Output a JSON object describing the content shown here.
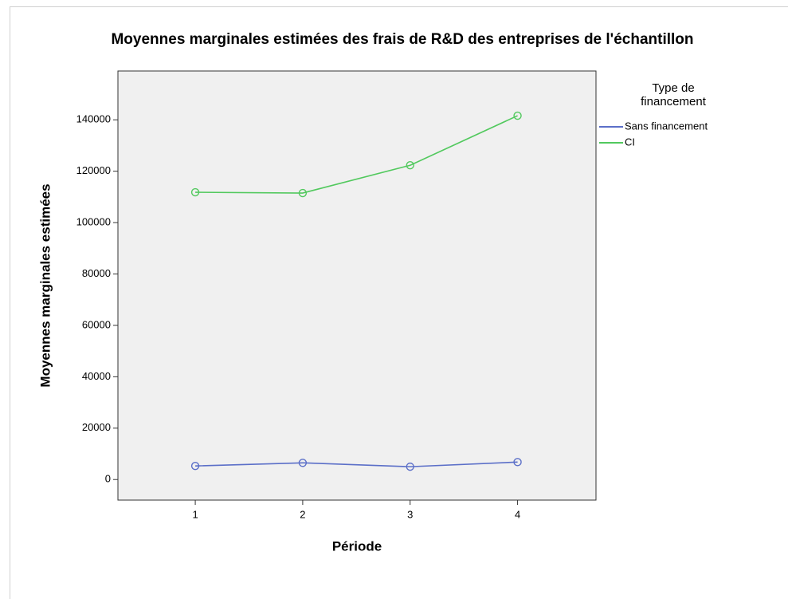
{
  "chart_data": {
    "type": "line",
    "title": "Moyennes marginales estimées des frais de R&D des entreprises de l'échantillon",
    "x_label": "Période",
    "y_label": "Moyennes marginales estimées",
    "legend_title": "Type de financement",
    "legend": "right",
    "x": [
      1,
      2,
      3,
      4
    ],
    "xlim": [
      0.28,
      4.73
    ],
    "xticks": [
      1,
      2,
      3,
      4
    ],
    "ylim": [
      -8000,
      159000
    ],
    "yticks": [
      0,
      20000,
      40000,
      60000,
      80000,
      100000,
      120000,
      140000
    ],
    "series": [
      {
        "name": "Sans financement",
        "color": "#5b6fc8",
        "values": [
          5300,
          6500,
          5000,
          6800
        ]
      },
      {
        "name": "CI",
        "color": "#52c95e",
        "values": [
          111800,
          111500,
          122300,
          141600
        ]
      }
    ]
  }
}
